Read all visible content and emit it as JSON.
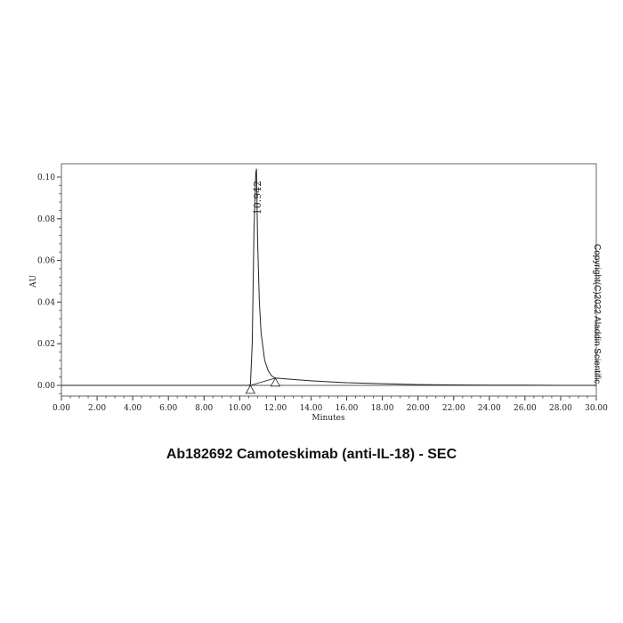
{
  "chart_data": {
    "type": "line",
    "title": "Ab182692 Camoteskimab (anti-IL-18) - SEC",
    "xlabel": "Minutes",
    "ylabel": "AU",
    "xlim": [
      0,
      30
    ],
    "ylim": [
      -0.005,
      0.105
    ],
    "x_ticks": [
      "0.00",
      "2.00",
      "4.00",
      "6.00",
      "8.00",
      "10.00",
      "12.00",
      "14.00",
      "16.00",
      "18.00",
      "20.00",
      "22.00",
      "24.00",
      "26.00",
      "28.00",
      "30.00"
    ],
    "y_ticks": [
      "0.00",
      "0.02",
      "0.04",
      "0.06",
      "0.08",
      "0.10"
    ],
    "grid": false,
    "series": [
      {
        "x": [
          0,
          4,
          8,
          10,
          10.5,
          10.6,
          10.7,
          10.8,
          10.9,
          10.942,
          11.0,
          11.1,
          11.2,
          11.4,
          11.6,
          11.8,
          12.0,
          13,
          14,
          15,
          16,
          18,
          20,
          22,
          24,
          26,
          28,
          30
        ],
        "y": [
          0,
          0,
          0,
          0,
          0,
          0.0005,
          0.02,
          0.075,
          0.102,
          0.104,
          0.07,
          0.04,
          0.025,
          0.012,
          0.007,
          0.0045,
          0.0035,
          0.0028,
          0.0022,
          0.0017,
          0.0013,
          0.0008,
          0.0004,
          0.0002,
          0.0001,
          0.0001,
          0,
          0
        ]
      }
    ],
    "peak_annotations": [
      {
        "label": "10.942",
        "x": 10.942
      }
    ],
    "integration_markers": [
      {
        "x": 10.6,
        "y": 0.0
      },
      {
        "x": 12.0,
        "y": 0.0035
      }
    ],
    "line_color": "#222222"
  },
  "watermark": "Copyright(C)2022 Aladdin Scientific."
}
